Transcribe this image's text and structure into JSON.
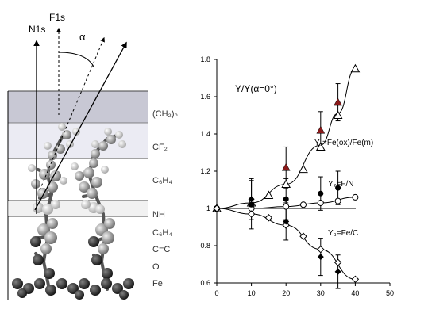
{
  "diagram": {
    "beam_labels": {
      "n1s": "N1s",
      "f1s": "F1s",
      "alpha": "α"
    },
    "layer_labels": [
      {
        "id": "ch2n",
        "text": "(CH₂)ₙ"
      },
      {
        "id": "cf2",
        "text": "CF₂"
      },
      {
        "id": "c6h4-top",
        "text": "C₆H₄"
      },
      {
        "id": "nh",
        "text": "NH"
      },
      {
        "id": "c6h4-bottom",
        "text": "C₆H₄"
      },
      {
        "id": "cc",
        "text": "C=C"
      },
      {
        "id": "o",
        "text": "O"
      },
      {
        "id": "fe",
        "text": "Fe"
      }
    ]
  },
  "chart_data": {
    "type": "scatter",
    "title": "Y/Y(α=0°)",
    "xlabel": "",
    "ylabel": "",
    "xlim": [
      0,
      50
    ],
    "ylim": [
      0.6,
      1.8
    ],
    "xticks": [
      0,
      10,
      20,
      30,
      40,
      50
    ],
    "yticks": [
      0.6,
      0.8,
      1.0,
      1.2,
      1.4,
      1.6,
      1.8
    ],
    "ytick_labels": [
      "0.6",
      "0.8",
      "1",
      "1.2",
      "1.4",
      "1.6",
      "1.8"
    ],
    "series": [
      {
        "name": "Y₁=Fe(ox)/Fe(m)",
        "marker": "open-triangle",
        "x": [
          0,
          10,
          15,
          20,
          25,
          30,
          35,
          40
        ],
        "y": [
          1.0,
          1.03,
          1.07,
          1.13,
          1.21,
          1.33,
          1.5,
          1.75
        ]
      },
      {
        "name": "",
        "marker": "filled-triangle-darkred",
        "x": [
          20,
          30,
          35
        ],
        "y": [
          1.22,
          1.42,
          1.57
        ],
        "err": [
          0.11,
          0.1,
          0.1
        ]
      },
      {
        "name": "Y₂=F/N",
        "marker": "open-circle",
        "x": [
          0,
          10,
          20,
          25,
          30,
          35,
          40
        ],
        "y": [
          1.0,
          1.0,
          1.01,
          1.02,
          1.03,
          1.04,
          1.06
        ]
      },
      {
        "name": "",
        "marker": "filled-circle",
        "x": [
          10,
          20,
          30,
          35
        ],
        "y": [
          1.02,
          1.05,
          1.08,
          1.11
        ],
        "err": [
          0.13,
          0.11,
          0.09,
          0.09
        ]
      },
      {
        "name": "Y₃=Fe/C",
        "marker": "open-diamond",
        "x": [
          0,
          10,
          15,
          20,
          25,
          30,
          35,
          40
        ],
        "y": [
          1.0,
          0.97,
          0.95,
          0.91,
          0.85,
          0.78,
          0.71,
          0.62
        ]
      },
      {
        "name": "",
        "marker": "filled-diamond",
        "x": [
          10,
          20,
          30,
          35
        ],
        "y": [
          1.05,
          0.93,
          0.74,
          0.66
        ],
        "err": [
          0.11,
          0.1,
          0.1,
          0.09
        ]
      }
    ],
    "fit_curves": [
      {
        "series": "Y₁=Fe(ox)/Fe(m)",
        "x": [
          0,
          10,
          20,
          30,
          35,
          40
        ],
        "y": [
          1.0,
          1.03,
          1.13,
          1.34,
          1.51,
          1.75
        ]
      },
      {
        "series": "Y₂=F/N",
        "x": [
          0,
          10,
          20,
          30,
          40
        ],
        "y": [
          1.0,
          1.0,
          1.01,
          1.03,
          1.06
        ]
      },
      {
        "series": "Y₃=Fe/C",
        "x": [
          0,
          10,
          20,
          30,
          40
        ],
        "y": [
          1.0,
          0.97,
          0.91,
          0.78,
          0.62
        ]
      }
    ],
    "reference_line": 1.0,
    "legend": "inline-labels-right"
  }
}
